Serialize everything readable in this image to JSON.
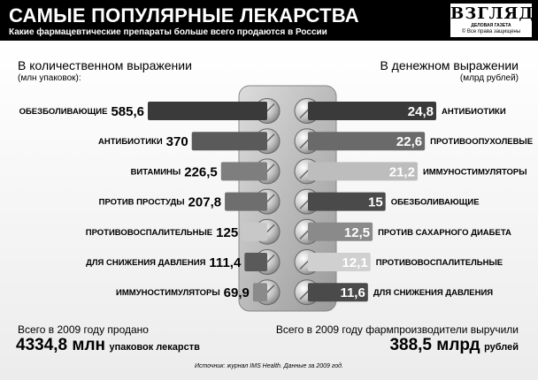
{
  "header": {
    "title": "САМЫЕ ПОПУЛЯРНЫЕ ЛЕКАРСТВА",
    "subtitle": "Какие фармацевтические препараты больше всего продаются в России"
  },
  "logo": {
    "name": "ВЗГЛЯД",
    "tagline": "ДЕЛОВАЯ ГАЗЕТА",
    "rights": "© Все права защищены"
  },
  "left": {
    "title": "В количественном выражении",
    "unit": "(млн упаковок):"
  },
  "right": {
    "title": "В денежном выражении",
    "unit": "(млрд рублей)"
  },
  "chart_data": [
    {
      "type": "bar",
      "title": "В количественном выражении",
      "ylabel": "(млн упаковок):",
      "categories": [
        "ОБЕЗБОЛИВАЮЩИЕ",
        "АНТИБИОТИКИ",
        "ВИТАМИНЫ",
        "ПРОТИВ ПРОСТУДЫ",
        "ПРОТИВОВОСПАЛИТЕЛЬНЫЕ",
        "ДЛЯ СНИЖЕНИЯ ДАВЛЕНИЯ",
        "ИММУНОСТИМУЛЯТОРЫ"
      ],
      "values": [
        585.6,
        370,
        226.5,
        207.8,
        125,
        111.4,
        69.9
      ],
      "labels": [
        "585,6",
        "370",
        "226,5",
        "207,8",
        "125",
        "111,4",
        "69,9"
      ],
      "shade": [
        "#3a3a3a",
        "#5a5a5a",
        "#7e7e7e",
        "#6e6e6e",
        "#c8c8c8",
        "#5a5a5a",
        "#8a8a8a"
      ]
    },
    {
      "type": "bar",
      "title": "В денежном выражении",
      "ylabel": "(млрд рублей)",
      "categories": [
        "АНТИБИОТИКИ",
        "ПРОТИВООПУХОЛЕВЫЕ",
        "ИММУНОСТИМУЛЯТОРЫ",
        "ОБЕЗБОЛИВАЮЩИЕ",
        "ПРОТИВ САХАРНОГО ДИАБЕТА",
        "ПРОТИВОВОСПАЛИТЕЛЬНЫЕ",
        "ДЛЯ СНИЖЕНИЯ ДАВЛЕНИЯ"
      ],
      "values": [
        24.8,
        22.6,
        21.2,
        15,
        12.5,
        12.1,
        11.6
      ],
      "labels": [
        "24,8",
        "22,6",
        "21,2",
        "15",
        "12,5",
        "12,1",
        "11,6"
      ],
      "shade": [
        "#3a3a3a",
        "#6a6a6a",
        "#bdbdbd",
        "#4a4a4a",
        "#8a8a8a",
        "#d0d0d0",
        "#4a4a4a"
      ]
    }
  ],
  "totals": {
    "left_label": "Всего в 2009 году продано",
    "left_value": "4334,8 млн",
    "left_unit": "упаковок лекарств",
    "right_label": "Всего в 2009 году фармпроизводители выручили",
    "right_value": "388,5 млрд",
    "right_unit": "рублей"
  },
  "source": "Источник: журнал IMS Health. Данные за 2009 год."
}
